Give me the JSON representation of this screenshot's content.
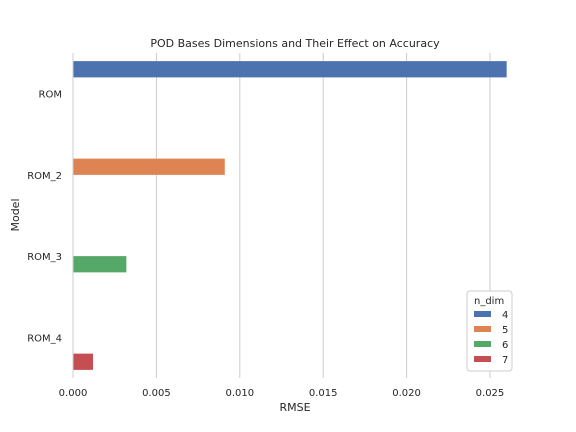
{
  "chart_data": {
    "type": "bar",
    "orientation": "horizontal",
    "title": "POD Bases Dimensions and Their Effect on Accuracy",
    "xlabel": "RMSE",
    "ylabel": "Model",
    "categories": [
      "ROM",
      "ROM_2",
      "ROM_3",
      "ROM_4"
    ],
    "xlim": [
      0,
      0.0265
    ],
    "xticks": [
      "0.000",
      "0.005",
      "0.010",
      "0.015",
      "0.020",
      "0.025"
    ],
    "grid": "vertical",
    "legend": {
      "title": "n_dim",
      "placement": "lower-right",
      "entries": [
        "4",
        "5",
        "6",
        "7"
      ]
    },
    "series": [
      {
        "name": "4",
        "color": "#4c72b0",
        "values": [
          0.026,
          null,
          null,
          null
        ]
      },
      {
        "name": "5",
        "color": "#dd8452",
        "values": [
          null,
          0.0091,
          null,
          null
        ]
      },
      {
        "name": "6",
        "color": "#55a868",
        "values": [
          null,
          null,
          0.0032,
          null
        ]
      },
      {
        "name": "7",
        "color": "#c44e52",
        "values": [
          null,
          null,
          null,
          0.0012
        ]
      }
    ]
  }
}
